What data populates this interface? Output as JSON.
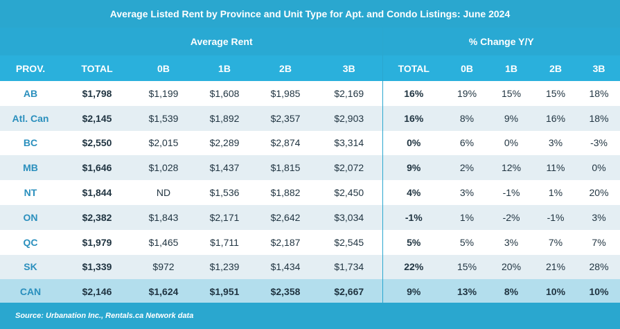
{
  "title": "Average Listed Rent by Province and Unit Type for Apt. and Condo Listings: June 2024",
  "group_headers": {
    "avg": "Average Rent",
    "chg": "% Change Y/Y"
  },
  "columns": [
    "PROV.",
    "TOTAL",
    "0B",
    "1B",
    "2B",
    "3B",
    "TOTAL",
    "0B",
    "1B",
    "2B",
    "3B"
  ],
  "rows": [
    [
      "AB",
      "$1,798",
      "$1,199",
      "$1,608",
      "$1,985",
      "$2,169",
      "16%",
      "19%",
      "15%",
      "15%",
      "18%"
    ],
    [
      "Atl. Can",
      "$2,145",
      "$1,539",
      "$1,892",
      "$2,357",
      "$2,903",
      "16%",
      "8%",
      "9%",
      "16%",
      "18%"
    ],
    [
      "BC",
      "$2,550",
      "$2,015",
      "$2,289",
      "$2,874",
      "$3,314",
      "0%",
      "6%",
      "0%",
      "3%",
      "-3%"
    ],
    [
      "MB",
      "$1,646",
      "$1,028",
      "$1,437",
      "$1,815",
      "$2,072",
      "9%",
      "2%",
      "12%",
      "11%",
      "0%"
    ],
    [
      "NT",
      "$1,844",
      "ND",
      "$1,536",
      "$1,882",
      "$2,450",
      "4%",
      "3%",
      "-1%",
      "1%",
      "20%"
    ],
    [
      "ON",
      "$2,382",
      "$1,843",
      "$2,171",
      "$2,642",
      "$3,034",
      "-1%",
      "1%",
      "-2%",
      "-1%",
      "3%"
    ],
    [
      "QC",
      "$1,979",
      "$1,465",
      "$1,711",
      "$2,187",
      "$2,545",
      "5%",
      "5%",
      "3%",
      "7%",
      "7%"
    ],
    [
      "SK",
      "$1,339",
      "$972",
      "$1,239",
      "$1,434",
      "$1,734",
      "22%",
      "15%",
      "20%",
      "21%",
      "28%"
    ],
    [
      "CAN",
      "$2,146",
      "$1,624",
      "$1,951",
      "$2,358",
      "$2,667",
      "9%",
      "13%",
      "8%",
      "10%",
      "10%"
    ]
  ],
  "source": "Source: Urbanation Inc., Rentals.ca Network data",
  "colors": {
    "header": "#2aa7cf",
    "alt_row": "#e4eef3",
    "total_row": "#b3deed",
    "province_text": "#2a8fbd"
  }
}
